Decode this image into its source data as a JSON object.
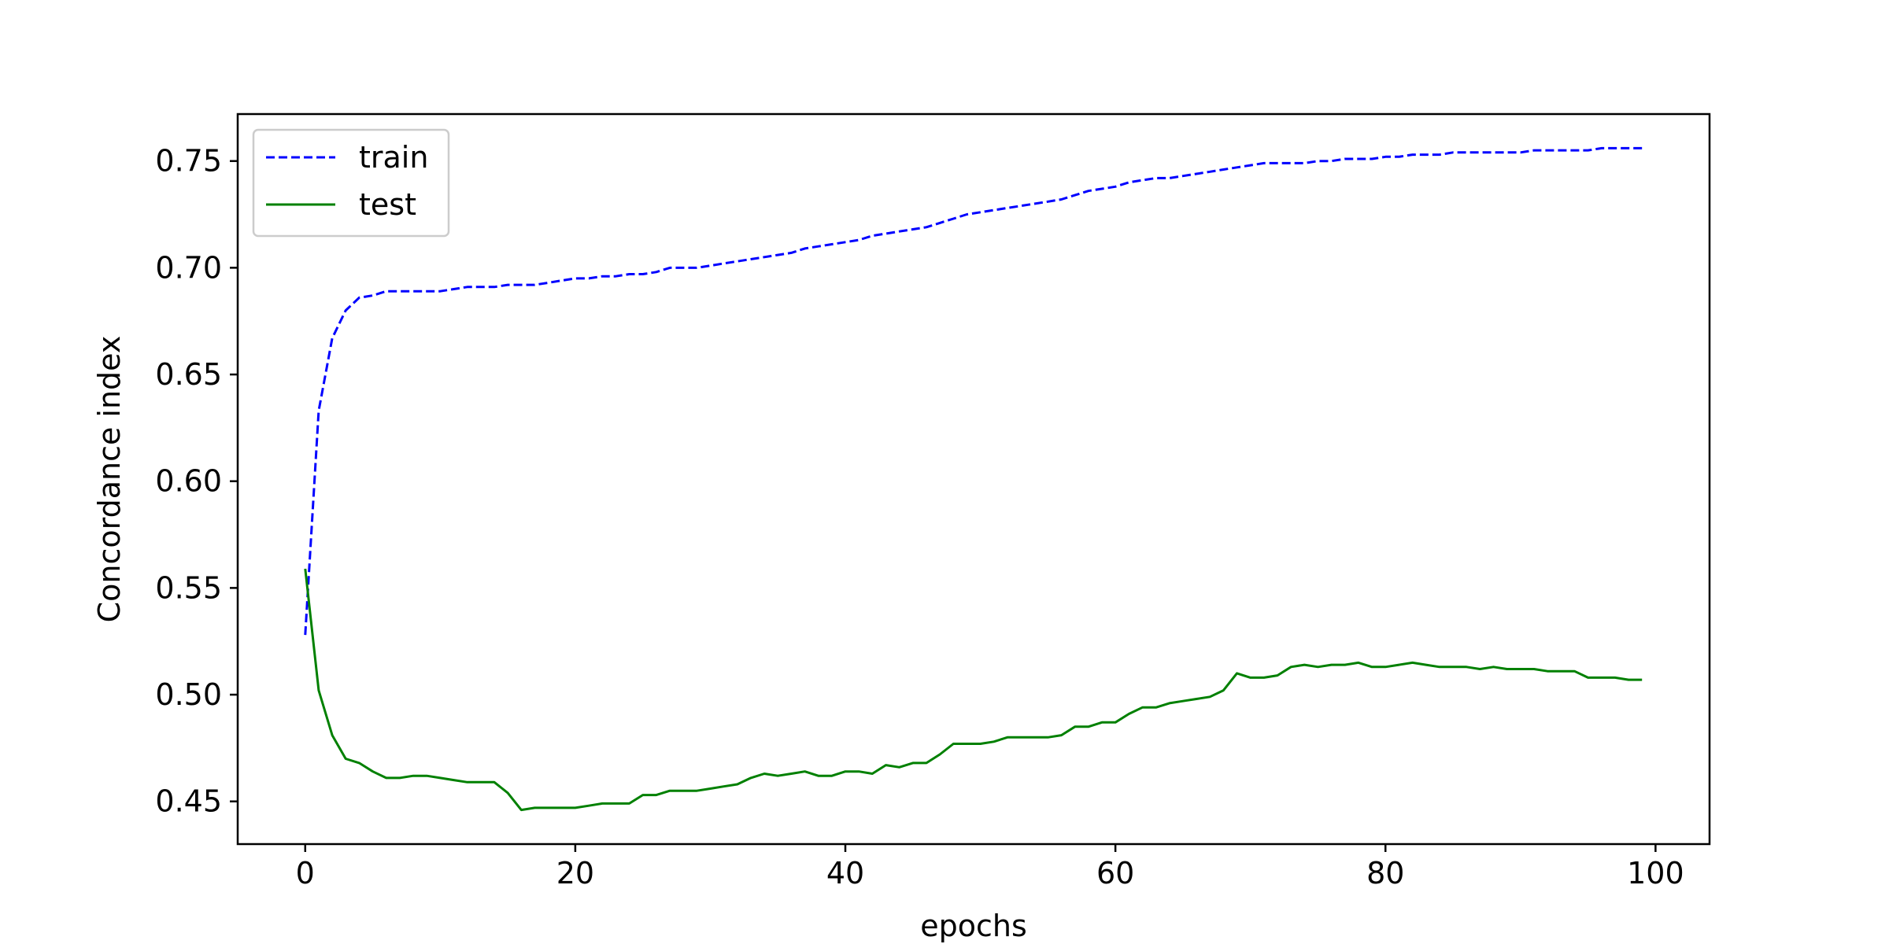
{
  "chart_data": {
    "type": "line",
    "xlabel": "epochs",
    "ylabel": "Concordance index",
    "xlim": [
      -5,
      104
    ],
    "ylim": [
      0.43,
      0.772
    ],
    "x_ticks": [
      0,
      20,
      40,
      60,
      80,
      100
    ],
    "x_tick_labels": [
      "0",
      "20",
      "40",
      "60",
      "80",
      "100"
    ],
    "y_ticks": [
      0.45,
      0.5,
      0.55,
      0.6,
      0.65,
      0.7,
      0.75
    ],
    "y_tick_labels": [
      "0.45",
      "0.50",
      "0.55",
      "0.60",
      "0.65",
      "0.70",
      "0.75"
    ],
    "grid": false,
    "legend_position": "top-left",
    "series": [
      {
        "name": "train",
        "color": "#0000ff",
        "dash": "dashed",
        "x": [
          0,
          1,
          2,
          3,
          4,
          5,
          6,
          7,
          8,
          9,
          10,
          11,
          12,
          13,
          14,
          15,
          16,
          17,
          18,
          19,
          20,
          21,
          22,
          23,
          24,
          25,
          26,
          27,
          28,
          29,
          30,
          31,
          32,
          33,
          34,
          35,
          36,
          37,
          38,
          39,
          40,
          41,
          42,
          43,
          44,
          45,
          46,
          47,
          48,
          49,
          50,
          51,
          52,
          53,
          54,
          55,
          56,
          57,
          58,
          59,
          60,
          61,
          62,
          63,
          64,
          65,
          66,
          67,
          68,
          69,
          70,
          71,
          72,
          73,
          74,
          75,
          76,
          77,
          78,
          79,
          80,
          81,
          82,
          83,
          84,
          85,
          86,
          87,
          88,
          89,
          90,
          91,
          92,
          93,
          94,
          95,
          96,
          97,
          98,
          99
        ],
        "values": [
          0.528,
          0.633,
          0.667,
          0.68,
          0.686,
          0.687,
          0.689,
          0.689,
          0.689,
          0.689,
          0.689,
          0.69,
          0.691,
          0.691,
          0.691,
          0.692,
          0.692,
          0.692,
          0.693,
          0.694,
          0.695,
          0.695,
          0.696,
          0.696,
          0.697,
          0.697,
          0.698,
          0.7,
          0.7,
          0.7,
          0.701,
          0.702,
          0.703,
          0.704,
          0.705,
          0.706,
          0.707,
          0.709,
          0.71,
          0.711,
          0.712,
          0.713,
          0.715,
          0.716,
          0.717,
          0.718,
          0.719,
          0.721,
          0.723,
          0.725,
          0.726,
          0.727,
          0.728,
          0.729,
          0.73,
          0.731,
          0.732,
          0.734,
          0.736,
          0.737,
          0.738,
          0.74,
          0.741,
          0.742,
          0.742,
          0.743,
          0.744,
          0.745,
          0.746,
          0.747,
          0.748,
          0.749,
          0.749,
          0.749,
          0.749,
          0.75,
          0.75,
          0.751,
          0.751,
          0.751,
          0.752,
          0.752,
          0.753,
          0.753,
          0.753,
          0.754,
          0.754,
          0.754,
          0.754,
          0.754,
          0.754,
          0.755,
          0.755,
          0.755,
          0.755,
          0.755,
          0.756,
          0.756,
          0.756,
          0.756
        ]
      },
      {
        "name": "test",
        "color": "#008000",
        "dash": "solid",
        "x": [
          0,
          1,
          2,
          3,
          4,
          5,
          6,
          7,
          8,
          9,
          10,
          11,
          12,
          13,
          14,
          15,
          16,
          17,
          18,
          19,
          20,
          21,
          22,
          23,
          24,
          25,
          26,
          27,
          28,
          29,
          30,
          31,
          32,
          33,
          34,
          35,
          36,
          37,
          38,
          39,
          40,
          41,
          42,
          43,
          44,
          45,
          46,
          47,
          48,
          49,
          50,
          51,
          52,
          53,
          54,
          55,
          56,
          57,
          58,
          59,
          60,
          61,
          62,
          63,
          64,
          65,
          66,
          67,
          68,
          69,
          70,
          71,
          72,
          73,
          74,
          75,
          76,
          77,
          78,
          79,
          80,
          81,
          82,
          83,
          84,
          85,
          86,
          87,
          88,
          89,
          90,
          91,
          92,
          93,
          94,
          95,
          96,
          97,
          98,
          99
        ],
        "values": [
          0.559,
          0.502,
          0.481,
          0.47,
          0.468,
          0.464,
          0.461,
          0.461,
          0.462,
          0.462,
          0.461,
          0.46,
          0.459,
          0.459,
          0.459,
          0.454,
          0.446,
          0.447,
          0.447,
          0.447,
          0.447,
          0.448,
          0.449,
          0.449,
          0.449,
          0.453,
          0.453,
          0.455,
          0.455,
          0.455,
          0.456,
          0.457,
          0.458,
          0.461,
          0.463,
          0.462,
          0.463,
          0.464,
          0.462,
          0.462,
          0.464,
          0.464,
          0.463,
          0.467,
          0.466,
          0.468,
          0.468,
          0.472,
          0.477,
          0.477,
          0.477,
          0.478,
          0.48,
          0.48,
          0.48,
          0.48,
          0.481,
          0.485,
          0.485,
          0.487,
          0.487,
          0.491,
          0.494,
          0.494,
          0.496,
          0.497,
          0.498,
          0.499,
          0.502,
          0.51,
          0.508,
          0.508,
          0.509,
          0.513,
          0.514,
          0.513,
          0.514,
          0.514,
          0.515,
          0.513,
          0.513,
          0.514,
          0.515,
          0.514,
          0.513,
          0.513,
          0.513,
          0.512,
          0.513,
          0.512,
          0.512,
          0.512,
          0.511,
          0.511,
          0.511,
          0.508,
          0.508,
          0.508,
          0.507,
          0.507
        ]
      }
    ]
  }
}
